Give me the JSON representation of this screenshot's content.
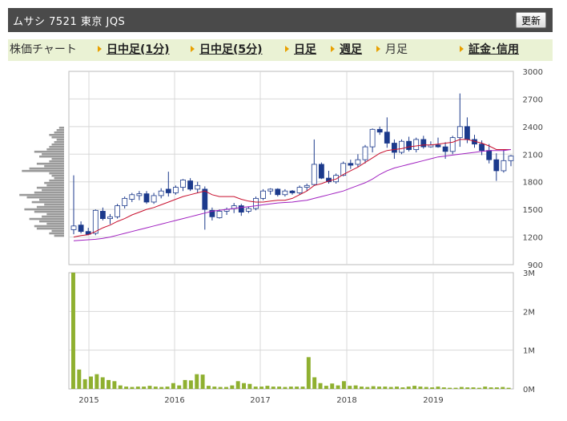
{
  "header": {
    "title": "ムサシ  7521  東京 JQS",
    "refresh_label": "更新"
  },
  "tabs": [
    {
      "label": "株価チャート",
      "link": false,
      "arrow": false
    },
    {
      "label": "日中足(1分)",
      "link": true,
      "arrow": true
    },
    {
      "label": "日中足(5分)",
      "link": true,
      "arrow": true
    },
    {
      "label": "日足",
      "link": true,
      "arrow": true
    },
    {
      "label": "週足",
      "link": true,
      "arrow": true
    },
    {
      "label": "月足",
      "link": false,
      "arrow": true
    },
    {
      "label": "証金･信用",
      "link": true,
      "arrow": true
    }
  ],
  "colors": {
    "up_candle": "#ffffff",
    "down_candle": "#1c3a8c",
    "ma_short": "#c8102e",
    "ma_long": "#a020c0",
    "volume": "#8fb030",
    "grid": "#d8d8d8"
  },
  "chart_data": [
    {
      "type": "candlestick",
      "title": "",
      "x_ticks": [
        "2015",
        "2016",
        "2017",
        "2018",
        "2019"
      ],
      "y_ticks": [
        "3000",
        "2700",
        "2400",
        "2100",
        "1800",
        "1500",
        "1200",
        "900"
      ],
      "ylim": [
        900,
        3000
      ],
      "candles": [
        {
          "o": 1280,
          "h": 1870,
          "l": 1230,
          "c": 1320
        },
        {
          "o": 1330,
          "h": 1370,
          "l": 1240,
          "c": 1260
        },
        {
          "o": 1260,
          "h": 1300,
          "l": 1220,
          "c": 1230
        },
        {
          "o": 1240,
          "h": 1500,
          "l": 1220,
          "c": 1490
        },
        {
          "o": 1480,
          "h": 1520,
          "l": 1380,
          "c": 1400
        },
        {
          "o": 1400,
          "h": 1450,
          "l": 1340,
          "c": 1420
        },
        {
          "o": 1420,
          "h": 1560,
          "l": 1400,
          "c": 1540
        },
        {
          "o": 1540,
          "h": 1640,
          "l": 1510,
          "c": 1620
        },
        {
          "o": 1610,
          "h": 1680,
          "l": 1580,
          "c": 1660
        },
        {
          "o": 1650,
          "h": 1700,
          "l": 1600,
          "c": 1670
        },
        {
          "o": 1670,
          "h": 1700,
          "l": 1560,
          "c": 1580
        },
        {
          "o": 1580,
          "h": 1680,
          "l": 1560,
          "c": 1650
        },
        {
          "o": 1650,
          "h": 1730,
          "l": 1620,
          "c": 1700
        },
        {
          "o": 1720,
          "h": 1910,
          "l": 1640,
          "c": 1680
        },
        {
          "o": 1680,
          "h": 1760,
          "l": 1660,
          "c": 1740
        },
        {
          "o": 1740,
          "h": 1830,
          "l": 1700,
          "c": 1820
        },
        {
          "o": 1810,
          "h": 1840,
          "l": 1700,
          "c": 1720
        },
        {
          "o": 1720,
          "h": 1800,
          "l": 1680,
          "c": 1760
        },
        {
          "o": 1720,
          "h": 1750,
          "l": 1280,
          "c": 1500
        },
        {
          "o": 1490,
          "h": 1520,
          "l": 1380,
          "c": 1420
        },
        {
          "o": 1410,
          "h": 1500,
          "l": 1400,
          "c": 1480
        },
        {
          "o": 1480,
          "h": 1520,
          "l": 1440,
          "c": 1500
        },
        {
          "o": 1510,
          "h": 1570,
          "l": 1460,
          "c": 1540
        },
        {
          "o": 1540,
          "h": 1560,
          "l": 1430,
          "c": 1470
        },
        {
          "o": 1480,
          "h": 1530,
          "l": 1460,
          "c": 1510
        },
        {
          "o": 1510,
          "h": 1640,
          "l": 1490,
          "c": 1620
        },
        {
          "o": 1620,
          "h": 1720,
          "l": 1600,
          "c": 1700
        },
        {
          "o": 1700,
          "h": 1730,
          "l": 1660,
          "c": 1720
        },
        {
          "o": 1720,
          "h": 1730,
          "l": 1640,
          "c": 1660
        },
        {
          "o": 1660,
          "h": 1720,
          "l": 1640,
          "c": 1700
        },
        {
          "o": 1700,
          "h": 1710,
          "l": 1660,
          "c": 1680
        },
        {
          "o": 1680,
          "h": 1760,
          "l": 1660,
          "c": 1740
        },
        {
          "o": 1740,
          "h": 1780,
          "l": 1700,
          "c": 1760
        },
        {
          "o": 1770,
          "h": 2260,
          "l": 1760,
          "c": 1990
        },
        {
          "o": 1990,
          "h": 2010,
          "l": 1830,
          "c": 1840
        },
        {
          "o": 1840,
          "h": 1920,
          "l": 1780,
          "c": 1800
        },
        {
          "o": 1800,
          "h": 1890,
          "l": 1780,
          "c": 1870
        },
        {
          "o": 1870,
          "h": 2020,
          "l": 1860,
          "c": 2000
        },
        {
          "o": 2000,
          "h": 2040,
          "l": 1940,
          "c": 1980
        },
        {
          "o": 1990,
          "h": 2100,
          "l": 1960,
          "c": 2040
        },
        {
          "o": 2040,
          "h": 2200,
          "l": 2000,
          "c": 2180
        },
        {
          "o": 2180,
          "h": 2380,
          "l": 2120,
          "c": 2370
        },
        {
          "o": 2370,
          "h": 2400,
          "l": 2310,
          "c": 2340
        },
        {
          "o": 2340,
          "h": 2500,
          "l": 2170,
          "c": 2220
        },
        {
          "o": 2220,
          "h": 2260,
          "l": 2050,
          "c": 2120
        },
        {
          "o": 2120,
          "h": 2260,
          "l": 2100,
          "c": 2240
        },
        {
          "o": 2240,
          "h": 2290,
          "l": 2130,
          "c": 2150
        },
        {
          "o": 2150,
          "h": 2280,
          "l": 2120,
          "c": 2260
        },
        {
          "o": 2260,
          "h": 2300,
          "l": 2160,
          "c": 2180
        },
        {
          "o": 2180,
          "h": 2240,
          "l": 2170,
          "c": 2200
        },
        {
          "o": 2200,
          "h": 2280,
          "l": 2170,
          "c": 2180
        },
        {
          "o": 2180,
          "h": 2230,
          "l": 2050,
          "c": 2130
        },
        {
          "o": 2130,
          "h": 2300,
          "l": 2100,
          "c": 2280
        },
        {
          "o": 2280,
          "h": 2760,
          "l": 2180,
          "c": 2400
        },
        {
          "o": 2400,
          "h": 2500,
          "l": 2220,
          "c": 2260
        },
        {
          "o": 2260,
          "h": 2310,
          "l": 2170,
          "c": 2210
        },
        {
          "o": 2210,
          "h": 2250,
          "l": 2090,
          "c": 2140
        },
        {
          "o": 2140,
          "h": 2210,
          "l": 2000,
          "c": 2040
        },
        {
          "o": 2040,
          "h": 2110,
          "l": 1810,
          "c": 1920
        },
        {
          "o": 1920,
          "h": 2150,
          "l": 1900,
          "c": 2030
        },
        {
          "o": 2030,
          "h": 2090,
          "l": 1970,
          "c": 2080
        }
      ],
      "ma_short": [
        1200,
        1215,
        1225,
        1260,
        1300,
        1330,
        1370,
        1400,
        1440,
        1470,
        1500,
        1520,
        1550,
        1580,
        1610,
        1640,
        1660,
        1680,
        1700,
        1660,
        1640,
        1640,
        1640,
        1610,
        1590,
        1580,
        1580,
        1590,
        1600,
        1600,
        1620,
        1660,
        1700,
        1760,
        1780,
        1810,
        1830,
        1880,
        1920,
        1960,
        2010,
        2060,
        2110,
        2140,
        2150,
        2160,
        2180,
        2190,
        2200,
        2200,
        2210,
        2220,
        2230,
        2260,
        2260,
        2240,
        2220,
        2190,
        2150,
        2150,
        2150
      ],
      "ma_long": [
        1160,
        1165,
        1170,
        1175,
        1185,
        1200,
        1220,
        1240,
        1260,
        1280,
        1300,
        1320,
        1340,
        1360,
        1380,
        1400,
        1420,
        1440,
        1460,
        1480,
        1490,
        1500,
        1510,
        1520,
        1530,
        1540,
        1550,
        1560,
        1570,
        1575,
        1580,
        1590,
        1600,
        1620,
        1640,
        1660,
        1680,
        1700,
        1730,
        1760,
        1790,
        1830,
        1880,
        1920,
        1950,
        1970,
        1990,
        2010,
        2030,
        2050,
        2070,
        2080,
        2090,
        2100,
        2110,
        2120,
        2130,
        2140,
        2140,
        2140,
        2150
      ],
      "volume_profile": [
        0.2,
        0.3,
        0.25,
        0.55,
        0.6,
        0.35,
        0.5,
        0.7,
        0.45,
        0.35,
        0.6,
        0.8,
        0.55,
        0.4,
        0.65,
        0.5,
        0.75,
        0.9,
        0.6,
        0.45,
        0.55,
        0.35,
        0.4,
        0.3,
        0.2,
        0.25,
        0.3,
        0.85,
        0.7,
        0.4,
        0.55,
        0.3,
        0.25,
        0.5,
        0.45,
        0.6,
        0.35,
        0.3,
        0.25,
        0.2,
        0.15,
        0.25,
        0.3,
        0.2,
        0.15,
        0.1
      ]
    },
    {
      "type": "bar",
      "title": "",
      "y_ticks": [
        "3M",
        "2M",
        "1M",
        "0M"
      ],
      "ylim": [
        0,
        3000000
      ],
      "values": [
        3000000,
        500000,
        250000,
        320000,
        380000,
        300000,
        230000,
        200000,
        90000,
        60000,
        50000,
        60000,
        60000,
        80000,
        60000,
        50000,
        60000,
        150000,
        90000,
        230000,
        220000,
        380000,
        370000,
        80000,
        60000,
        50000,
        50000,
        90000,
        200000,
        150000,
        130000,
        60000,
        60000,
        80000,
        60000,
        60000,
        50000,
        60000,
        60000,
        60000,
        820000,
        300000,
        150000,
        80000,
        140000,
        90000,
        200000,
        80000,
        90000,
        60000,
        50000,
        70000,
        60000,
        60000,
        50000,
        60000,
        40000,
        60000,
        80000,
        60000,
        50000,
        40000,
        60000,
        40000,
        30000,
        30000,
        50000,
        40000,
        40000,
        30000,
        60000,
        40000,
        40000,
        50000,
        30000
      ]
    }
  ]
}
